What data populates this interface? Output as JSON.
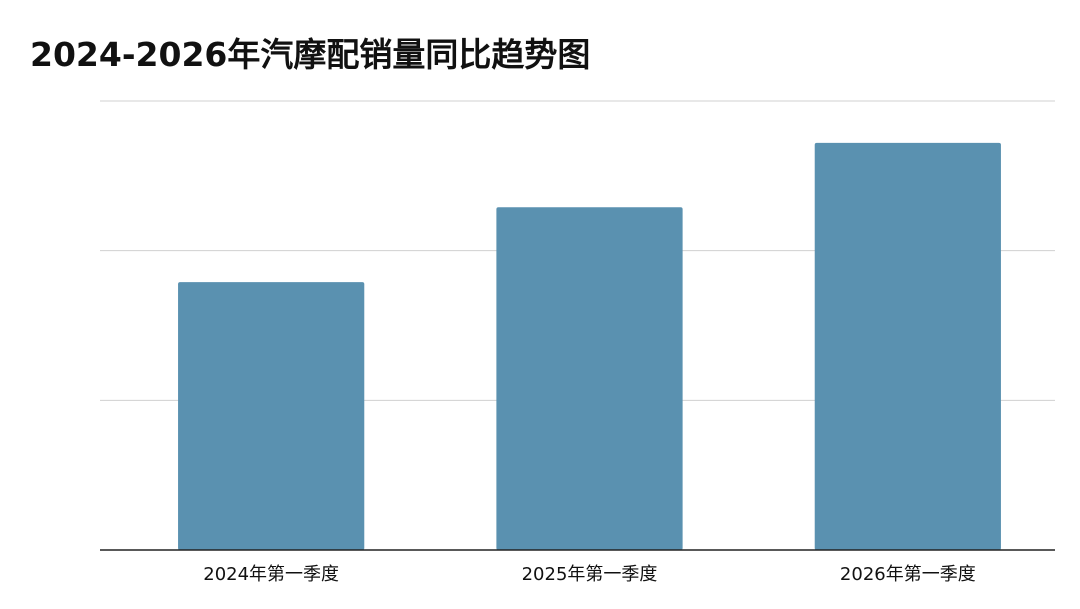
{
  "chart_data": {
    "type": "bar",
    "title": "2024-2026年汽摩配销量同比趋势图",
    "categories": [
      "2024年第一季度",
      "2025年第一季度",
      "2026年第一季度"
    ],
    "values": [
      1.79,
      2.29,
      2.72
    ],
    "xlabel": "",
    "ylabel": "",
    "ylim": [
      0,
      3
    ],
    "grid": true,
    "y_tick_labels_shown": false,
    "legend": "none",
    "colors": {
      "bar": "#5a91b0",
      "grid": "#d0d0d0",
      "axis": "#222222"
    }
  }
}
